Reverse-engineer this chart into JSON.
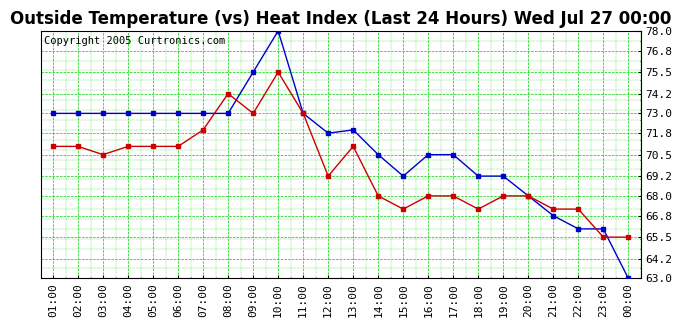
{
  "title": "Outside Temperature (vs) Heat Index (Last 24 Hours) Wed Jul 27 00:00",
  "copyright": "Copyright 2005 Curtronics.com",
  "x_labels": [
    "01:00",
    "02:00",
    "03:00",
    "04:00",
    "05:00",
    "06:00",
    "07:00",
    "08:00",
    "09:00",
    "10:00",
    "11:00",
    "12:00",
    "13:00",
    "14:00",
    "15:00",
    "16:00",
    "17:00",
    "18:00",
    "19:00",
    "20:00",
    "21:00",
    "22:00",
    "23:00",
    "00:00"
  ],
  "blue_data": [
    73.0,
    73.0,
    73.0,
    73.0,
    73.0,
    73.0,
    73.0,
    73.0,
    75.5,
    78.0,
    73.0,
    71.8,
    72.0,
    70.5,
    69.2,
    70.5,
    70.5,
    69.2,
    69.2,
    68.0,
    66.8,
    66.0,
    66.0,
    63.0
  ],
  "red_data": [
    71.0,
    71.0,
    70.5,
    71.0,
    71.0,
    71.0,
    72.0,
    74.2,
    73.0,
    75.5,
    73.0,
    69.2,
    71.0,
    68.0,
    67.2,
    68.0,
    68.0,
    67.2,
    68.0,
    68.0,
    67.2,
    67.2,
    65.5,
    65.5
  ],
  "blue_color": "#0000cc",
  "red_color": "#cc0000",
  "bg_color": "#ffffff",
  "grid_color": "#00cc00",
  "plot_bg": "#ffffff",
  "ylim_min": 63.0,
  "ylim_max": 78.0,
  "yticks": [
    63.0,
    64.2,
    65.5,
    66.8,
    68.0,
    69.2,
    70.5,
    71.8,
    73.0,
    74.2,
    75.5,
    76.8,
    78.0
  ],
  "title_fontsize": 12,
  "tick_fontsize": 8,
  "copyright_fontsize": 7.5
}
